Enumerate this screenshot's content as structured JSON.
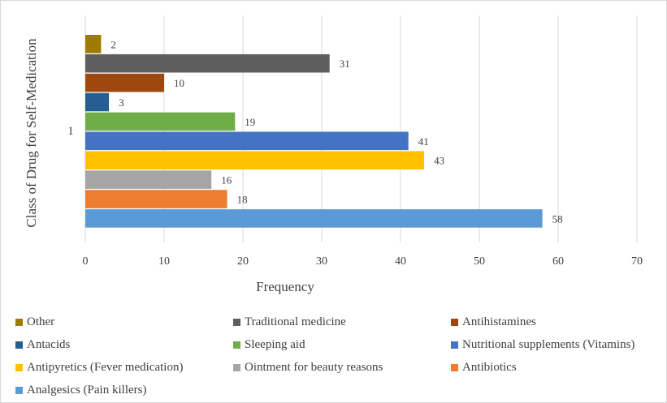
{
  "chart_data": {
    "type": "bar",
    "orientation": "horizontal",
    "title": "",
    "xlabel": "Frequency",
    "ylabel": "Class of Drug for Self-Medication",
    "category_label": "1",
    "xlim": [
      0,
      70
    ],
    "xticks": [
      "0",
      "10",
      "20",
      "30",
      "40",
      "50",
      "60",
      "70"
    ],
    "grid": true,
    "legend_position": "bottom",
    "series": [
      {
        "name": "Other",
        "value": 2,
        "color": "#9c7b00"
      },
      {
        "name": "Traditional medicine",
        "value": 31,
        "color": "#5e5e5e"
      },
      {
        "name": "Antihistamines",
        "value": 10,
        "color": "#9e480e"
      },
      {
        "name": "Antacids",
        "value": 3,
        "color": "#255e91"
      },
      {
        "name": "Sleeping aid",
        "value": 19,
        "color": "#70ad47"
      },
      {
        "name": "Nutritional supplements (Vitamins)",
        "value": 41,
        "color": "#4472c4"
      },
      {
        "name": "Antipyretics (Fever medication)",
        "value": 43,
        "color": "#ffc000"
      },
      {
        "name": "Ointment for beauty reasons",
        "value": 16,
        "color": "#a5a5a5"
      },
      {
        "name": "Antibiotics",
        "value": 18,
        "color": "#ed7d31"
      },
      {
        "name": "Analgesics (Pain killers)",
        "value": 58,
        "color": "#5b9bd5"
      }
    ]
  }
}
